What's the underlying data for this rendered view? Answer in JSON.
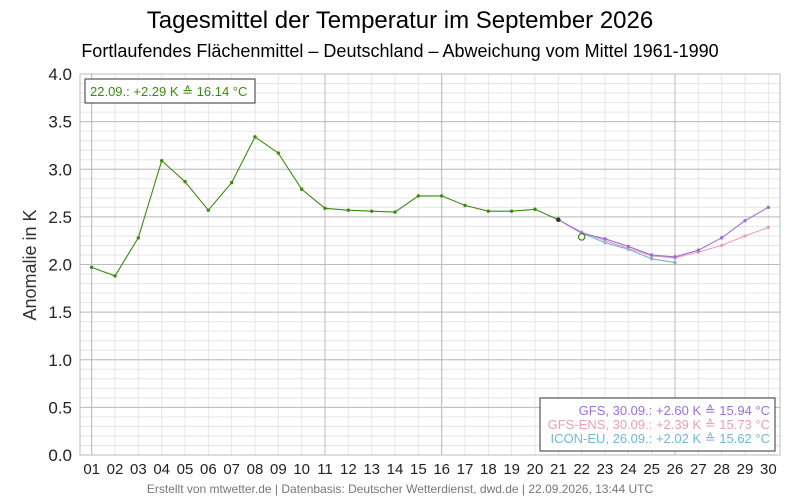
{
  "chart_data": {
    "type": "line",
    "title": "Tagesmittel der Temperatur im September 2026",
    "subtitle": "Fortlaufendes Flächenmittel – Deutschland – Abweichung vom Mittel 1961-1990",
    "ylabel": "Anomalie in K",
    "ylim": [
      0.0,
      4.0
    ],
    "yticks": [
      "0.0",
      "0.5",
      "1.0",
      "1.5",
      "2.0",
      "2.5",
      "3.0",
      "3.5",
      "4.0"
    ],
    "xlim": [
      1,
      30
    ],
    "xticks": [
      "01",
      "02",
      "03",
      "04",
      "05",
      "06",
      "07",
      "08",
      "09",
      "10",
      "11",
      "12",
      "13",
      "14",
      "15",
      "16",
      "17",
      "18",
      "19",
      "20",
      "21",
      "22",
      "23",
      "24",
      "25",
      "26",
      "27",
      "28",
      "29",
      "30"
    ],
    "grid": true,
    "series": [
      {
        "key": "observed",
        "color": "#3a8a10",
        "x": [
          1,
          2,
          3,
          4,
          5,
          6,
          7,
          8,
          9,
          10,
          11,
          12,
          13,
          14,
          15,
          16,
          17,
          18,
          19,
          20,
          21
        ],
        "values": [
          1.97,
          1.88,
          2.28,
          3.09,
          2.87,
          2.57,
          2.86,
          3.34,
          3.17,
          2.79,
          2.59,
          2.57,
          2.56,
          2.55,
          2.72,
          2.72,
          2.62,
          2.56,
          2.56,
          2.58,
          2.47
        ]
      },
      {
        "key": "gfs",
        "color": "#9b6fd9",
        "x": [
          21,
          22,
          23,
          24,
          25,
          26,
          27,
          28,
          29,
          30
        ],
        "values": [
          2.47,
          2.33,
          2.27,
          2.19,
          2.1,
          2.08,
          2.15,
          2.28,
          2.46,
          2.6
        ]
      },
      {
        "key": "gfs_ens",
        "color": "#e8a0b8",
        "x": [
          21,
          22,
          23,
          24,
          25,
          26,
          27,
          28,
          29,
          30
        ],
        "values": [
          2.47,
          2.34,
          2.25,
          2.17,
          2.09,
          2.07,
          2.13,
          2.2,
          2.3,
          2.39
        ]
      },
      {
        "key": "icon_eu",
        "color": "#6fb8d8",
        "x": [
          21,
          22,
          23,
          24,
          25,
          26
        ],
        "values": [
          2.47,
          2.33,
          2.23,
          2.16,
          2.06,
          2.02
        ]
      }
    ],
    "current_point": {
      "x": 22,
      "value": 2.29
    },
    "observed_box": "22.09.: +2.29 K ≙ 16.14 °C",
    "legend": [
      {
        "label": "GFS, 30.09.: +2.60 K ≙ 15.94 °C",
        "color": "#9b6fd9"
      },
      {
        "label": "GFS-ENS, 30.09.: +2.39 K ≙ 15.73 °C",
        "color": "#e8a0b8"
      },
      {
        "label": "ICON-EU, 26.09.: +2.02 K ≙ 15.62 °C",
        "color": "#6fb8d8"
      }
    ],
    "legend_position": "bottom-right",
    "footer": "Erstellt von mtwetter.de | Datenbasis: Deutscher Wetterdienst, dwd.de | 22.09.2026, 13:44 UTC"
  }
}
